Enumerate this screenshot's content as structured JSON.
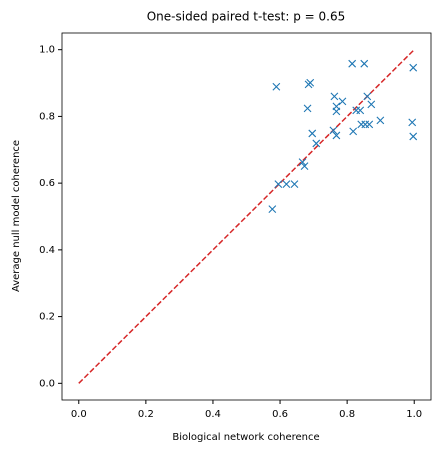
{
  "chart_data": {
    "type": "scatter",
    "title": "One-sided paired t-test: p = 0.65",
    "xlabel": "Biological network coherence",
    "ylabel": "Average null model coherence",
    "xlim": [
      -0.05,
      1.05
    ],
    "ylim": [
      -0.05,
      1.05
    ],
    "xticks": [
      {
        "value": 0,
        "label": "0.0"
      },
      0.2,
      0.4,
      0.6,
      0.8,
      {
        "value": 1,
        "label": "1.0"
      }
    ],
    "yticks": [
      {
        "value": 0,
        "label": "0.0"
      },
      0.2,
      0.4,
      0.6,
      0.8,
      {
        "value": 1,
        "label": "1.0"
      }
    ],
    "marker_color": "#1f77b4",
    "x": [
      0.589,
      0.815,
      0.851,
      0.997,
      0.69,
      0.685,
      0.682,
      0.762,
      0.786,
      0.768,
      0.768,
      0.86,
      0.827,
      0.839,
      0.872,
      0.994,
      0.899,
      0.854,
      0.866,
      0.842,
      0.696,
      0.768,
      0.759,
      0.818,
      0.997,
      0.708,
      0.667,
      0.673,
      0.595,
      0.619,
      0.643,
      0.577
    ],
    "y": [
      0.889,
      0.958,
      0.958,
      0.946,
      0.901,
      0.896,
      0.824,
      0.86,
      0.845,
      0.83,
      0.815,
      0.86,
      0.818,
      0.818,
      0.836,
      0.782,
      0.788,
      0.776,
      0.776,
      0.776,
      0.749,
      0.743,
      0.758,
      0.755,
      0.74,
      0.719,
      0.663,
      0.651,
      0.597,
      0.597,
      0.597,
      0.522
    ],
    "diagonal": {
      "x": [
        0,
        1
      ],
      "y": [
        0,
        1
      ],
      "color": "#d62728"
    }
  }
}
